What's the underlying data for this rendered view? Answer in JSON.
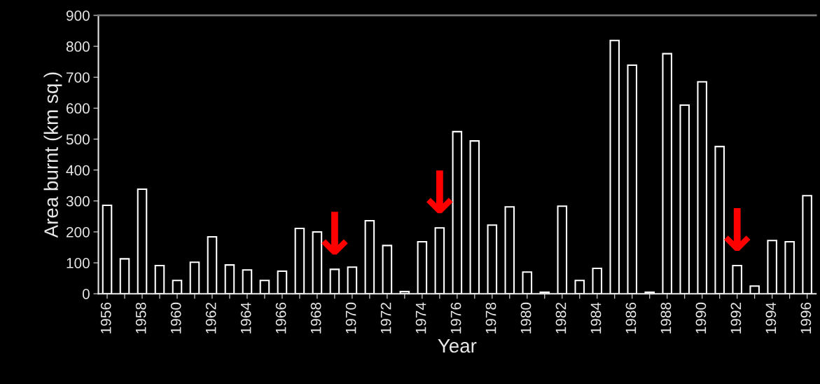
{
  "chart_data": {
    "type": "bar",
    "xlabel": "Year",
    "ylabel": "Area burnt (km sq.)",
    "x": [
      1956,
      1957,
      1958,
      1959,
      1960,
      1961,
      1962,
      1963,
      1964,
      1965,
      1966,
      1967,
      1968,
      1969,
      1970,
      1971,
      1972,
      1973,
      1974,
      1975,
      1976,
      1977,
      1978,
      1979,
      1980,
      1981,
      1982,
      1983,
      1984,
      1985,
      1986,
      1987,
      1988,
      1989,
      1990,
      1991,
      1992,
      1993,
      1994,
      1995,
      1996
    ],
    "values": [
      286,
      113,
      338,
      91,
      43,
      102,
      184,
      93,
      77,
      43,
      73,
      211,
      200,
      79,
      86,
      236,
      156,
      7,
      168,
      213,
      524,
      494,
      222,
      281,
      70,
      5,
      283,
      43,
      82,
      819,
      739,
      5,
      776,
      610,
      685,
      476,
      91,
      25,
      172,
      168,
      317
    ],
    "color": "#ffffff",
    "xlim": [
      1955.5,
      1996.5
    ],
    "xticks": [
      1956,
      {
        "value": 1957,
        "label": null
      },
      1958,
      {
        "value": 1959,
        "label": null
      },
      1960,
      {
        "value": 1961,
        "label": null
      },
      1962,
      {
        "value": 1963,
        "label": null
      },
      1964,
      {
        "value": 1965,
        "label": null
      },
      1966,
      {
        "value": 1967,
        "label": null
      },
      1968,
      {
        "value": 1969,
        "label": null
      },
      1970,
      {
        "value": 1971,
        "label": null
      },
      1972,
      {
        "value": 1973,
        "label": null
      },
      1974,
      {
        "value": 1975,
        "label": null
      },
      1976,
      {
        "value": 1977,
        "label": null
      },
      1978,
      {
        "value": 1979,
        "label": null
      },
      1980,
      {
        "value": 1981,
        "label": null
      },
      1982,
      {
        "value": 1983,
        "label": null
      },
      1984,
      {
        "value": 1985,
        "label": null
      },
      1986,
      {
        "value": 1987,
        "label": null
      },
      1988,
      {
        "value": 1989,
        "label": null
      },
      1990,
      {
        "value": 1991,
        "label": null
      },
      1992,
      {
        "value": 1993,
        "label": null
      },
      1994,
      {
        "value": 1995,
        "label": null
      },
      1996
    ],
    "ylim": [
      0,
      900
    ],
    "yticks": [
      0,
      100,
      200,
      300,
      400,
      500,
      600,
      700,
      800,
      900
    ],
    "annotations": [
      {
        "text": "↓",
        "x": 1969,
        "y": 79
      },
      {
        "text": "↓",
        "x": 1975,
        "y": 213
      },
      {
        "text": "↓",
        "x": 1992,
        "y": 91
      }
    ],
    "grid": false,
    "legend": false
  }
}
